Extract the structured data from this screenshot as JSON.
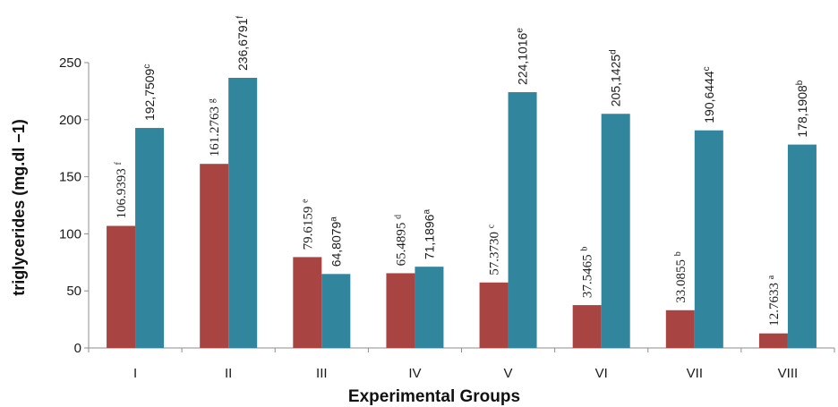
{
  "chart_data": {
    "type": "bar",
    "title": "",
    "xlabel": "Experimental Groups",
    "ylabel": "triglycerides (mg.dl −1)",
    "ylim": [
      0,
      250
    ],
    "yticks": [
      0,
      50,
      100,
      150,
      200,
      250
    ],
    "grid": false,
    "legend": "none",
    "categories": [
      "I",
      "II",
      "III",
      "IV",
      "V",
      "VI",
      "VII",
      "VIII"
    ],
    "series": [
      {
        "color": "#a84542",
        "values": [
          106.9393,
          161.2763,
          79.6159,
          65.4895,
          57.373,
          37.5465,
          33.0855,
          12.7633
        ],
        "labels": [
          "106.9393",
          "161.2763",
          "79.6159",
          "65.4895",
          "57.3730",
          "37.5465",
          "33.0855",
          "12.7633"
        ],
        "superscripts": [
          "f",
          "g",
          "e",
          "d",
          "c",
          "b",
          "b",
          "a"
        ]
      },
      {
        "color": "#31859c",
        "values": [
          192.7509,
          236.6791,
          64.8079,
          71.1896,
          224.1016,
          205.1425,
          190.6444,
          178.1908
        ],
        "labels": [
          "192,7509",
          "236,6791",
          "64,8079",
          "71,1896",
          "224,1016",
          "205,1425",
          "190,6444",
          "178,1908"
        ],
        "superscripts": [
          "c",
          "f",
          "a",
          "a",
          "e",
          "d",
          "c",
          "b"
        ]
      }
    ]
  }
}
